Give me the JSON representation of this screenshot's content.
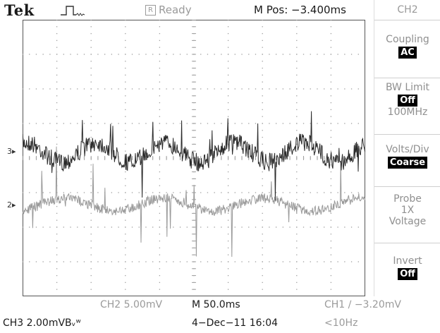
{
  "header": {
    "brand": "Tek",
    "status": "Ready",
    "status_icon_letter": "R",
    "m_pos": "M Pos: −3.400ms"
  },
  "menu": {
    "channel": "CH2",
    "coupling": {
      "label": "Coupling",
      "value": "AC"
    },
    "bw_limit": {
      "label": "BW Limit",
      "value": "Off",
      "detail": "100MHz"
    },
    "volts_div": {
      "label": "Volts/Div",
      "value": "Coarse"
    },
    "probe": {
      "label": "Probe",
      "line2": "1X",
      "line3": "Voltage"
    },
    "invert": {
      "label": "Invert",
      "value": "Off"
    }
  },
  "markers": {
    "ch3": "3▸",
    "ch2": "2▸"
  },
  "footer": {
    "ch2_scale": "CH2  5.00mV",
    "timebase": "M 50.0ms",
    "trigger": "CH1 ∕ −3.20mV",
    "ch3_scale": "CH3  2.00mVBᵥʷ",
    "date": "4−Dec−11 16:04",
    "freq": "<10Hz"
  },
  "colors": {
    "ch3_trace": "#2a2a2a",
    "ch2_trace": "#9a9a9a",
    "grid": "#9f9f9f"
  }
}
